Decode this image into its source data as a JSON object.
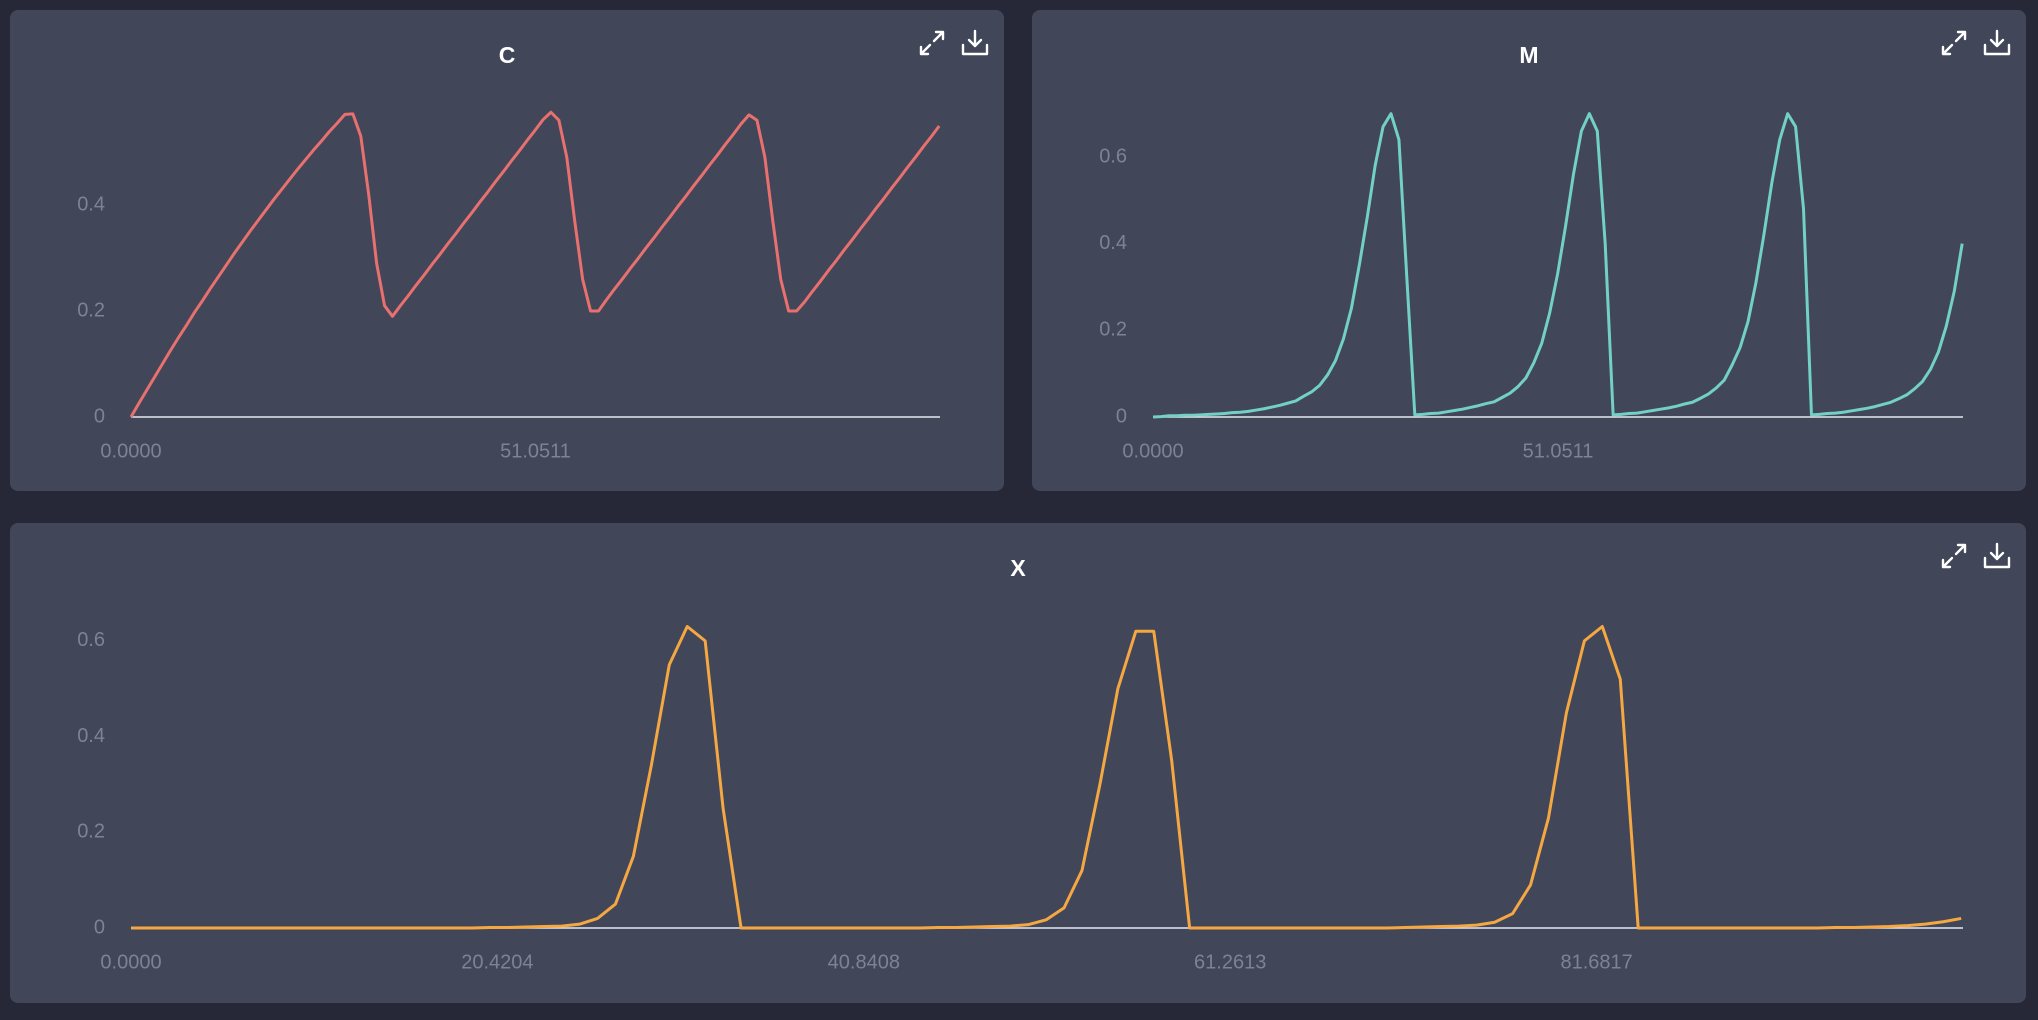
{
  "chart_data": [
    {
      "type": "line",
      "title": "C",
      "color": "#e8706f",
      "x": [
        0,
        1,
        2,
        3,
        4,
        5,
        6,
        7,
        8,
        9,
        10,
        11,
        12,
        13,
        14,
        15,
        16,
        17,
        18,
        19,
        20,
        21,
        22,
        23,
        24,
        25,
        26,
        27,
        28,
        29,
        30,
        31,
        32,
        33,
        34,
        35,
        36,
        37,
        38,
        39,
        40,
        41,
        42,
        43,
        44,
        45,
        46,
        47,
        48,
        49,
        50,
        51,
        52,
        53,
        54,
        55,
        56,
        57,
        58,
        59,
        60,
        61,
        62,
        63,
        64,
        65,
        66,
        67,
        68,
        69,
        70,
        71,
        72,
        73,
        74,
        75,
        76,
        77,
        78,
        79,
        80,
        81,
        82,
        83,
        84,
        85,
        86,
        87,
        88,
        89,
        90,
        91,
        92,
        93,
        94,
        95,
        96,
        97,
        98,
        99,
        100,
        101,
        102
      ],
      "values": [
        0,
        0.026,
        0.051,
        0.076,
        0.101,
        0.126,
        0.15,
        0.173,
        0.197,
        0.219,
        0.242,
        0.264,
        0.286,
        0.308,
        0.329,
        0.35,
        0.37,
        0.39,
        0.41,
        0.429,
        0.448,
        0.467,
        0.485,
        0.503,
        0.52,
        0.538,
        0.554,
        0.571,
        0.572,
        0.53,
        0.42,
        0.29,
        0.21,
        0.19,
        0.21,
        0.229,
        0.249,
        0.268,
        0.288,
        0.307,
        0.327,
        0.346,
        0.366,
        0.385,
        0.405,
        0.424,
        0.444,
        0.463,
        0.483,
        0.502,
        0.522,
        0.541,
        0.561,
        0.575,
        0.56,
        0.49,
        0.37,
        0.26,
        0.2,
        0.2,
        0.221,
        0.241,
        0.26,
        0.28,
        0.299,
        0.319,
        0.338,
        0.358,
        0.377,
        0.397,
        0.416,
        0.436,
        0.455,
        0.475,
        0.494,
        0.514,
        0.533,
        0.553,
        0.57,
        0.56,
        0.49,
        0.37,
        0.26,
        0.2,
        0.2,
        0.217,
        0.237,
        0.256,
        0.276,
        0.295,
        0.315,
        0.334,
        0.354,
        0.373,
        0.393,
        0.412,
        0.432,
        0.451,
        0.471,
        0.49,
        0.51,
        0.529,
        0.549
      ],
      "xlim": [
        0,
        102.102
      ],
      "xticks": [
        {
          "value": 0,
          "label": "0.0000"
        },
        51.0511
      ],
      "ylim": [
        0,
        0.6
      ],
      "yticks": [
        0,
        0.2,
        0.4
      ]
    },
    {
      "type": "line",
      "title": "M",
      "color": "#72d1c3",
      "x": [
        0,
        1,
        2,
        3,
        4,
        5,
        6,
        7,
        8,
        9,
        10,
        11,
        12,
        13,
        14,
        15,
        16,
        17,
        18,
        19,
        20,
        21,
        22,
        23,
        24,
        25,
        26,
        27,
        28,
        29,
        30,
        31,
        32,
        33,
        34,
        35,
        36,
        37,
        38,
        39,
        40,
        41,
        42,
        43,
        44,
        45,
        46,
        47,
        48,
        49,
        50,
        51,
        52,
        53,
        54,
        55,
        56,
        57,
        58,
        59,
        60,
        61,
        62,
        63,
        64,
        65,
        66,
        67,
        68,
        69,
        70,
        71,
        72,
        73,
        74,
        75,
        76,
        77,
        78,
        79,
        80,
        81,
        82,
        83,
        84,
        85,
        86,
        87,
        88,
        89,
        90,
        91,
        92,
        93,
        94,
        95,
        96,
        97,
        98,
        99,
        100,
        101,
        102
      ],
      "values": [
        0,
        0.001,
        0.003,
        0.003,
        0.004,
        0.004,
        0.005,
        0.006,
        0.007,
        0.008,
        0.01,
        0.011,
        0.013,
        0.016,
        0.019,
        0.023,
        0.027,
        0.032,
        0.037,
        0.048,
        0.058,
        0.073,
        0.097,
        0.13,
        0.18,
        0.25,
        0.35,
        0.46,
        0.58,
        0.67,
        0.7,
        0.64,
        0.32,
        0.005,
        0.006,
        0.008,
        0.009,
        0.012,
        0.015,
        0.018,
        0.022,
        0.026,
        0.031,
        0.035,
        0.045,
        0.055,
        0.07,
        0.09,
        0.125,
        0.17,
        0.24,
        0.33,
        0.44,
        0.56,
        0.66,
        0.7,
        0.66,
        0.4,
        0.005,
        0.006,
        0.008,
        0.009,
        0.012,
        0.015,
        0.018,
        0.021,
        0.025,
        0.03,
        0.034,
        0.043,
        0.053,
        0.067,
        0.085,
        0.12,
        0.16,
        0.22,
        0.31,
        0.42,
        0.54,
        0.64,
        0.7,
        0.67,
        0.48,
        0.005,
        0.006,
        0.008,
        0.009,
        0.011,
        0.014,
        0.017,
        0.02,
        0.024,
        0.029,
        0.034,
        0.042,
        0.051,
        0.065,
        0.082,
        0.11,
        0.15,
        0.21,
        0.29,
        0.4
      ],
      "xlim": [
        0,
        102.102
      ],
      "xticks": [
        {
          "value": 0,
          "label": "0.0000"
        },
        51.0511
      ],
      "ylim": [
        0,
        0.72
      ],
      "yticks": [
        0,
        0.2,
        0.4,
        0.6
      ]
    },
    {
      "type": "line",
      "title": "X",
      "color": "#f5a742",
      "x": [
        0,
        1,
        2,
        3,
        4,
        5,
        6,
        7,
        8,
        9,
        10,
        11,
        12,
        13,
        14,
        15,
        16,
        17,
        18,
        19,
        20,
        21,
        22,
        23,
        24,
        25,
        26,
        27,
        28,
        29,
        30,
        31,
        32,
        33,
        34,
        35,
        36,
        37,
        38,
        39,
        40,
        41,
        42,
        43,
        44,
        45,
        46,
        47,
        48,
        49,
        50,
        51,
        52,
        53,
        54,
        55,
        56,
        57,
        58,
        59,
        60,
        61,
        62,
        63,
        64,
        65,
        66,
        67,
        68,
        69,
        70,
        71,
        72,
        73,
        74,
        75,
        76,
        77,
        78,
        79,
        80,
        81,
        82,
        83,
        84,
        85,
        86,
        87,
        88,
        89,
        90,
        91,
        92,
        93,
        94,
        95,
        96,
        97,
        98,
        99,
        100,
        101,
        102
      ],
      "values": [
        0,
        0,
        0,
        0,
        0,
        0,
        0,
        0,
        0,
        0,
        0,
        0,
        0,
        0,
        0,
        0,
        0,
        0,
        0,
        0,
        0.001,
        0.001,
        0.002,
        0.003,
        0.004,
        0.008,
        0.02,
        0.05,
        0.15,
        0.34,
        0.55,
        0.63,
        0.6,
        0.25,
        0,
        0,
        0,
        0,
        0,
        0,
        0,
        0,
        0,
        0,
        0,
        0.001,
        0.001,
        0.002,
        0.003,
        0.004,
        0.007,
        0.017,
        0.042,
        0.12,
        0.3,
        0.5,
        0.62,
        0.62,
        0.35,
        0,
        0,
        0,
        0,
        0,
        0,
        0,
        0,
        0,
        0,
        0,
        0,
        0.001,
        0.002,
        0.003,
        0.004,
        0.006,
        0.012,
        0.03,
        0.09,
        0.23,
        0.45,
        0.6,
        0.63,
        0.52,
        0,
        0,
        0,
        0,
        0,
        0,
        0,
        0,
        0,
        0,
        0,
        0.001,
        0.001,
        0.002,
        0.003,
        0.005,
        0.008,
        0.013,
        0.02
      ],
      "xlim": [
        0,
        102.102
      ],
      "xticks": [
        {
          "value": 0,
          "label": "0.0000"
        },
        20.4204,
        40.8408,
        61.2613,
        81.6817
      ],
      "ylim": [
        0,
        0.7
      ],
      "yticks": [
        0,
        0.2,
        0.4,
        0.6
      ]
    }
  ]
}
